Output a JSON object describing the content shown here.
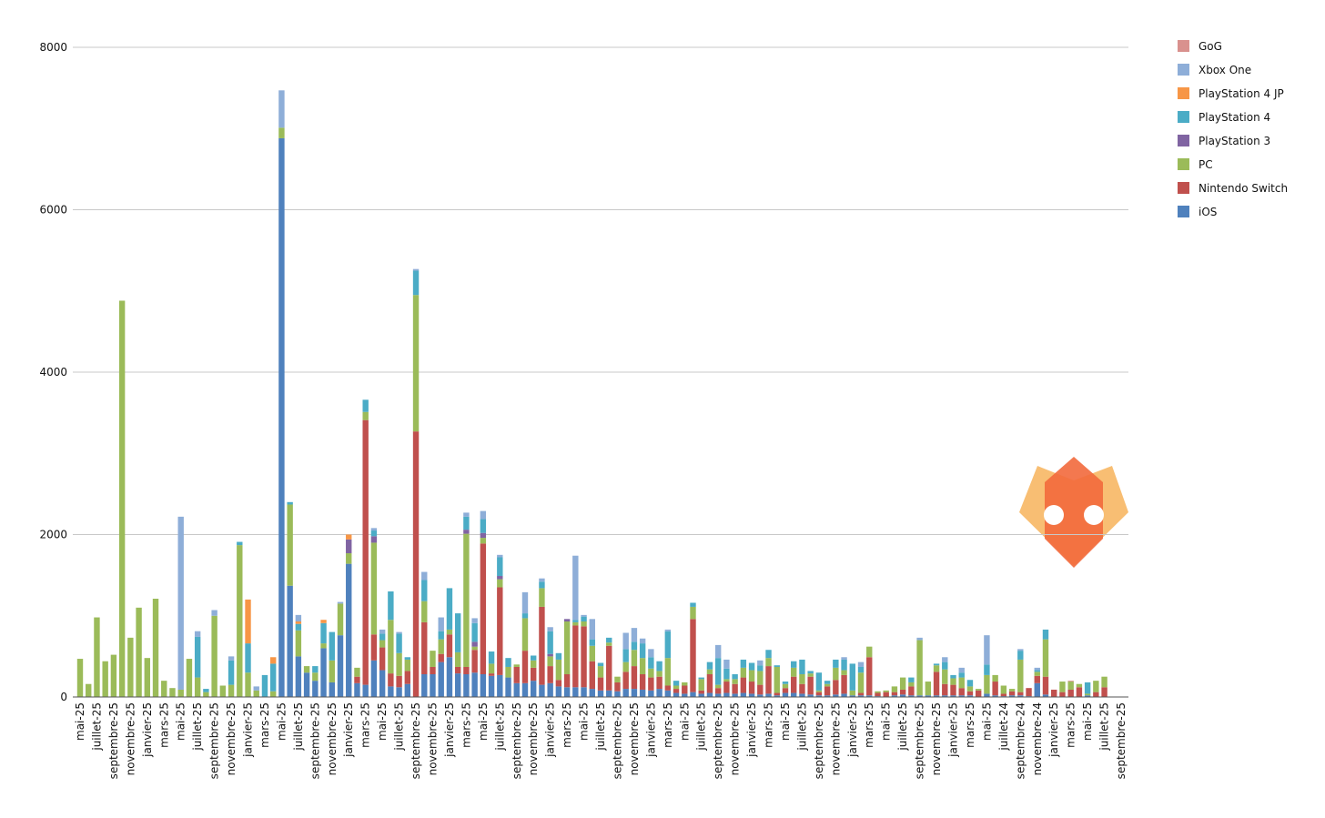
{
  "chart_data": {
    "type": "bar",
    "stacked": true,
    "grid": true,
    "legend": "right",
    "ylim": [
      0,
      8000
    ],
    "yticks": [
      0,
      2000,
      4000,
      6000,
      8000
    ],
    "categories": [
      "mai-25",
      null,
      "juillet-25",
      null,
      "septembre-25",
      null,
      "novembre-25",
      null,
      "janvier-25",
      null,
      "mars-25",
      null,
      "mai-25",
      null,
      "juillet-25",
      null,
      "septembre-25",
      null,
      "novembre-25",
      null,
      "janvier-25",
      null,
      "mars-25",
      null,
      "mai-25",
      null,
      "juillet-25",
      null,
      "septembre-25",
      null,
      "novembre-25",
      null,
      "janvier-25",
      null,
      "mars-25",
      null,
      "mai-25",
      null,
      "juillet-25",
      null,
      "septembre-25",
      null,
      "novembre-25",
      null,
      "janvier-25",
      null,
      "mars-25",
      null,
      "mai-25",
      null,
      "juillet-25",
      null,
      "septembre-25",
      null,
      "novembre-25",
      null,
      "janvier-25",
      null,
      "mars-25",
      null,
      "mai-25",
      null,
      "juillet-25",
      null,
      "septembre-25",
      null,
      "novembre-25",
      null,
      "janvier-25",
      null,
      "mars-25",
      null,
      "mai-25",
      null,
      "juillet-25",
      null,
      "septembre-25",
      null,
      "novembre-25",
      null,
      "janvier-25",
      null,
      "mars-25",
      null,
      "mai-25",
      null,
      "juillet-25",
      null,
      "septembre-25",
      null,
      "novembre-25",
      null,
      "janvier-25",
      null,
      "mars-25",
      null,
      "mai-25",
      null,
      "juillet-25",
      null,
      "septembre-25",
      null,
      "novembre-25",
      null,
      "janvier-25",
      null,
      "mars-25",
      null,
      "mai-25",
      null,
      "juillet-24",
      null,
      "septembre-24",
      null,
      "novembre-24",
      null,
      "janvier-25",
      null,
      "mars-25",
      null,
      "mai-25",
      null,
      "juillet-25",
      null,
      "septembre-25"
    ],
    "series": [
      {
        "name": "iOS",
        "color": "#4f81bd",
        "values": [
          0,
          0,
          0,
          0,
          0,
          0,
          0,
          0,
          0,
          0,
          0,
          0,
          0,
          0,
          0,
          0,
          0,
          0,
          0,
          0,
          0,
          0,
          0,
          0,
          6880,
          1370,
          500,
          300,
          200,
          600,
          180,
          760,
          1640,
          170,
          150,
          450,
          330,
          130,
          120,
          160,
          0,
          280,
          280,
          430,
          490,
          290,
          280,
          300,
          280,
          260,
          270,
          240,
          170,
          170,
          200,
          150,
          170,
          130,
          120,
          120,
          120,
          100,
          80,
          80,
          70,
          100,
          100,
          90,
          80,
          100,
          80,
          50,
          40,
          60,
          40,
          50,
          40,
          50,
          40,
          50,
          40,
          30,
          40,
          20,
          50,
          50,
          40,
          30,
          20,
          20,
          30,
          40,
          20,
          20,
          20,
          10,
          0,
          20,
          30,
          20,
          20,
          20,
          20,
          20,
          20,
          20,
          20,
          0,
          40,
          20,
          10,
          20,
          20,
          10,
          170,
          30,
          0,
          0,
          0,
          0,
          20,
          0,
          0,
          0,
          0
        ]
      },
      {
        "name": "Nintendo Switch",
        "color": "#c0504d",
        "values": [
          0,
          0,
          0,
          0,
          0,
          0,
          0,
          0,
          0,
          0,
          0,
          0,
          0,
          0,
          0,
          0,
          0,
          0,
          0,
          0,
          0,
          0,
          0,
          0,
          0,
          0,
          0,
          0,
          0,
          0,
          0,
          0,
          0,
          80,
          3260,
          320,
          280,
          160,
          140,
          160,
          3270,
          640,
          90,
          100,
          280,
          80,
          90,
          280,
          1610,
          30,
          1080,
          0,
          200,
          400,
          160,
          960,
          210,
          80,
          160,
          760,
          750,
          340,
          160,
          550,
          110,
          210,
          280,
          190,
          160,
          150,
          60,
          50,
          100,
          900,
          40,
          230,
          70,
          140,
          120,
          190,
          150,
          120,
          340,
          30,
          60,
          200,
          120,
          220,
          40,
          110,
          180,
          230,
          0,
          30,
          470,
          40,
          60,
          40,
          60,
          110,
          0,
          0,
          290,
          140,
          130,
          90,
          50,
          80,
          0,
          170,
          30,
          50,
          40,
          100,
          90,
          220,
          90,
          60,
          90,
          120,
          0,
          60,
          120,
          0,
          0
        ]
      },
      {
        "name": "PC",
        "color": "#9bbb59",
        "values": [
          470,
          160,
          980,
          440,
          520,
          4880,
          730,
          1100,
          480,
          1210,
          200,
          110,
          90,
          470,
          240,
          60,
          1000,
          140,
          150,
          1870,
          300,
          80,
          0,
          70,
          130,
          1000,
          320,
          80,
          100,
          60,
          270,
          390,
          130,
          110,
          100,
          1130,
          90,
          660,
          280,
          140,
          1680,
          260,
          200,
          180,
          60,
          180,
          1640,
          40,
          70,
          120,
          100,
          130,
          30,
          400,
          90,
          230,
          120,
          250,
          650,
          40,
          60,
          190,
          140,
          40,
          70,
          120,
          200,
          200,
          110,
          70,
          340,
          40,
          40,
          150,
          140,
          60,
          40,
          30,
          60,
          120,
          140,
          170,
          100,
          320,
          50,
          110,
          120,
          40,
          20,
          30,
          150,
          60,
          60,
          250,
          130,
          20,
          20,
          70,
          150,
          50,
          680,
          170,
          80,
          180,
          80,
          130,
          60,
          20,
          230,
          80,
          100,
          30,
          400,
          0,
          50,
          460,
          0,
          130,
          100,
          40,
          20,
          140,
          130,
          0,
          0
        ]
      },
      {
        "name": "PlayStation 3",
        "color": "#8064a2",
        "values": [
          0,
          0,
          0,
          0,
          0,
          0,
          0,
          0,
          0,
          0,
          0,
          0,
          0,
          0,
          0,
          0,
          0,
          0,
          0,
          0,
          0,
          0,
          0,
          0,
          0,
          0,
          0,
          0,
          0,
          0,
          0,
          0,
          170,
          0,
          0,
          80,
          0,
          0,
          0,
          0,
          0,
          0,
          0,
          0,
          0,
          0,
          50,
          60,
          60,
          0,
          40,
          0,
          0,
          0,
          0,
          0,
          30,
          0,
          30,
          0,
          0,
          0,
          0,
          0,
          0,
          0,
          0,
          0,
          0,
          0,
          0,
          0,
          0,
          0,
          0,
          0,
          0,
          0,
          0,
          0,
          0,
          0,
          0,
          0,
          0,
          0,
          0,
          0,
          0,
          0,
          0,
          0,
          0,
          0,
          0,
          0,
          0,
          0,
          0,
          0,
          0,
          0,
          0,
          0,
          0,
          0,
          0,
          0,
          0,
          0,
          0,
          0,
          0,
          0,
          0,
          0,
          0,
          0,
          0,
          0,
          0,
          0,
          0,
          0,
          0
        ]
      },
      {
        "name": "PlayStation 4",
        "color": "#4bacc6",
        "values": [
          0,
          0,
          0,
          0,
          0,
          0,
          0,
          0,
          0,
          0,
          0,
          0,
          0,
          0,
          500,
          40,
          0,
          0,
          300,
          40,
          360,
          0,
          270,
          340,
          0,
          30,
          80,
          0,
          80,
          250,
          350,
          0,
          0,
          0,
          150,
          70,
          80,
          350,
          240,
          30,
          300,
          260,
          0,
          100,
          510,
          480,
          160,
          230,
          170,
          150,
          230,
          110,
          0,
          60,
          60,
          80,
          280,
          80,
          0,
          30,
          60,
          80,
          40,
          60,
          0,
          160,
          100,
          180,
          140,
          120,
          330,
          60,
          0,
          50,
          20,
          90,
          330,
          130,
          60,
          100,
          90,
          70,
          100,
          20,
          30,
          80,
          180,
          30,
          220,
          40,
          100,
          130,
          330,
          70,
          0,
          0,
          0,
          0,
          0,
          60,
          0,
          0,
          20,
          90,
          40,
          60,
          80,
          0,
          130,
          0,
          0,
          0,
          110,
          0,
          20,
          120,
          0,
          0,
          0,
          0,
          140,
          0,
          0,
          0,
          0
        ]
      },
      {
        "name": "PlayStation 4 JP",
        "color": "#f79646",
        "values": [
          0,
          0,
          0,
          0,
          0,
          0,
          0,
          0,
          0,
          0,
          0,
          0,
          0,
          0,
          0,
          0,
          0,
          0,
          0,
          0,
          540,
          0,
          0,
          80,
          0,
          0,
          30,
          0,
          0,
          40,
          0,
          0,
          60,
          0,
          0,
          0,
          0,
          0,
          0,
          0,
          0,
          0,
          0,
          0,
          0,
          0,
          0,
          0,
          0,
          0,
          0,
          0,
          0,
          0,
          0,
          0,
          0,
          0,
          0,
          0,
          0,
          0,
          0,
          0,
          0,
          0,
          0,
          0,
          0,
          0,
          0,
          0,
          0,
          0,
          0,
          0,
          0,
          0,
          0,
          0,
          0,
          0,
          0,
          0,
          0,
          0,
          0,
          0,
          0,
          0,
          0,
          0,
          0,
          0,
          0,
          0,
          0,
          0,
          0,
          0,
          0,
          0,
          0,
          0,
          0,
          0,
          0,
          0,
          0,
          0,
          0,
          0,
          0,
          0,
          0,
          0,
          0,
          0,
          0,
          0,
          0,
          0,
          0,
          0,
          0
        ]
      },
      {
        "name": "Xbox One",
        "color": "#8eaed8",
        "values": [
          0,
          0,
          0,
          0,
          0,
          0,
          0,
          0,
          0,
          0,
          0,
          0,
          2130,
          0,
          70,
          0,
          70,
          0,
          50,
          0,
          0,
          50,
          0,
          0,
          460,
          0,
          80,
          0,
          0,
          0,
          0,
          20,
          0,
          0,
          0,
          30,
          50,
          0,
          20,
          0,
          20,
          100,
          0,
          170,
          0,
          0,
          50,
          60,
          100,
          0,
          30,
          0,
          0,
          260,
          0,
          40,
          50,
          0,
          0,
          790,
          20,
          250,
          0,
          0,
          0,
          200,
          170,
          60,
          100,
          0,
          20,
          0,
          0,
          0,
          0,
          0,
          160,
          110,
          0,
          0,
          0,
          60,
          0,
          0,
          0,
          0,
          0,
          0,
          0,
          0,
          0,
          30,
          0,
          60,
          0,
          0,
          0,
          0,
          0,
          0,
          30,
          0,
          0,
          60,
          0,
          60,
          0,
          0,
          360,
          0,
          0,
          0,
          20,
          0,
          30,
          0,
          0,
          0,
          0,
          0,
          0,
          0,
          0,
          0,
          0
        ]
      },
      {
        "name": "GoG",
        "color": "#d9918e",
        "values": [
          0,
          0,
          0,
          0,
          0,
          0,
          0,
          0,
          0,
          0,
          0,
          0,
          0,
          0,
          0,
          0,
          0,
          0,
          0,
          0,
          0,
          0,
          0,
          0,
          0,
          0,
          0,
          0,
          0,
          0,
          0,
          0,
          0,
          0,
          0,
          0,
          0,
          0,
          0,
          0,
          0,
          0,
          0,
          0,
          0,
          0,
          0,
          0,
          0,
          0,
          0,
          0,
          0,
          0,
          0,
          0,
          0,
          0,
          0,
          0,
          0,
          0,
          0,
          0,
          0,
          0,
          0,
          0,
          0,
          0,
          0,
          0,
          0,
          0,
          0,
          0,
          0,
          0,
          0,
          0,
          0,
          0,
          0,
          0,
          0,
          0,
          0,
          0,
          0,
          0,
          0,
          0,
          0,
          0,
          0,
          0,
          0,
          0,
          0,
          0,
          0,
          0,
          0,
          0,
          0,
          0,
          0,
          0,
          0,
          0,
          0,
          0,
          0,
          0,
          0,
          0,
          0,
          0,
          10,
          0,
          0,
          0,
          0,
          0,
          0
        ]
      }
    ]
  }
}
